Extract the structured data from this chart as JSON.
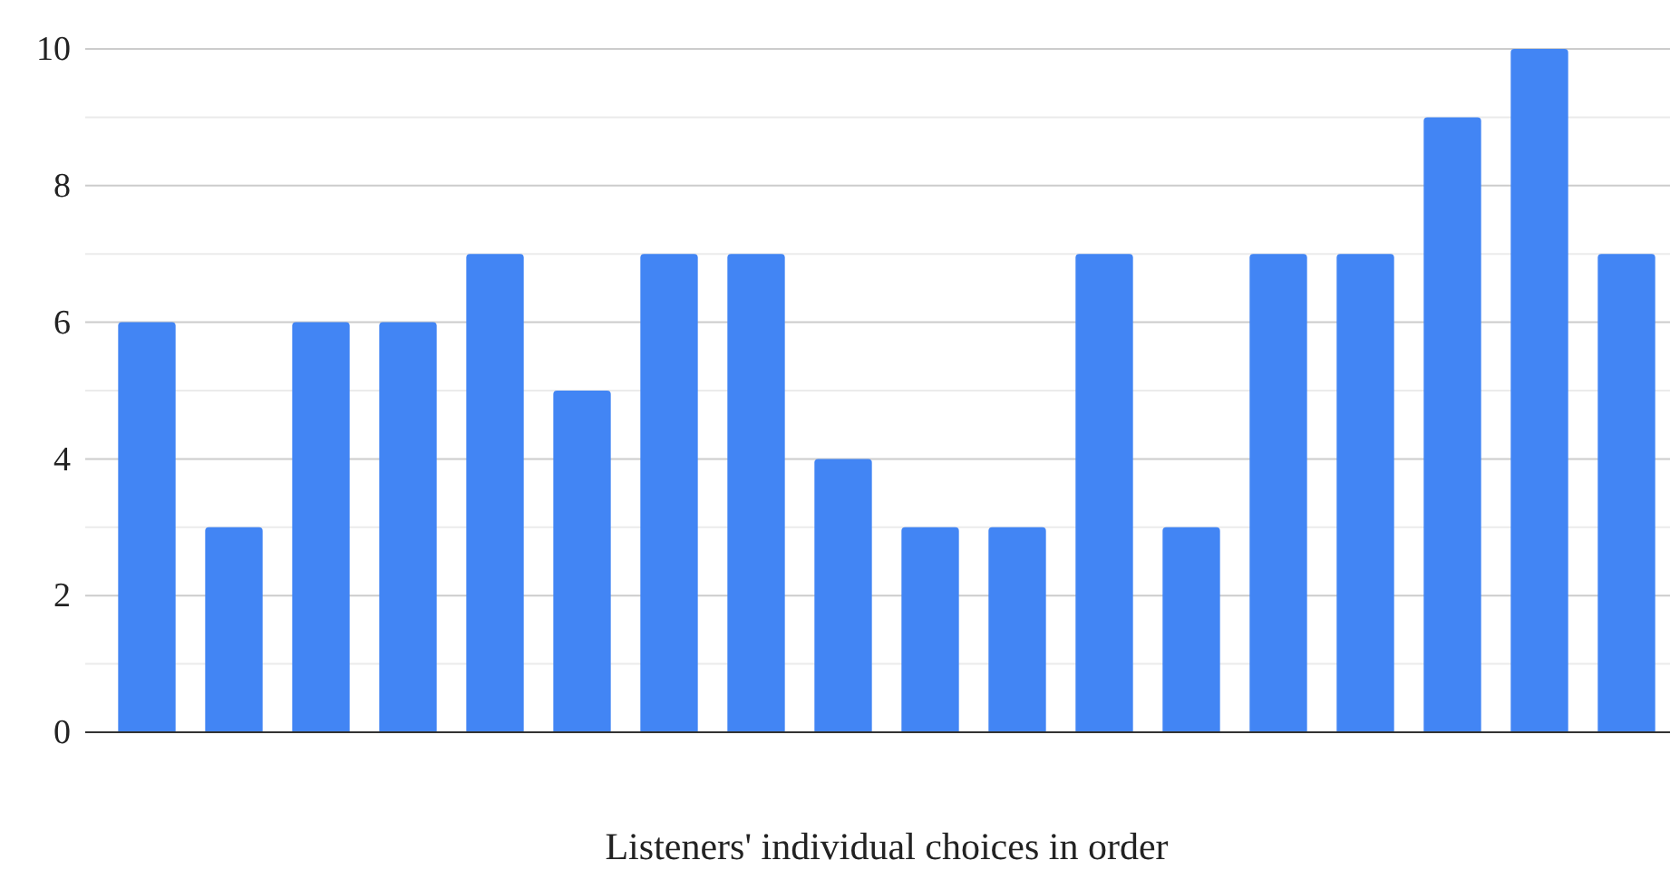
{
  "chart_data": {
    "type": "bar",
    "xlabel": "Listeners' individual choices in order",
    "categories": [
      null,
      null,
      null,
      null,
      null,
      null,
      null,
      null,
      null,
      null,
      null,
      null,
      null,
      null,
      null,
      null,
      null,
      null
    ],
    "values": [
      6,
      3,
      6,
      6,
      7,
      5,
      7,
      7,
      4,
      3,
      3,
      7,
      3,
      7,
      7,
      9,
      10,
      7
    ],
    "color": "#4285f4",
    "ylim": [
      0,
      10
    ],
    "yticks": [
      0,
      {
        "value": 1,
        "label": null
      },
      2,
      {
        "value": 3,
        "label": null
      },
      4,
      {
        "value": 5,
        "label": null
      },
      6,
      {
        "value": 7,
        "label": null
      },
      8,
      {
        "value": 9,
        "label": null
      },
      10
    ],
    "grid": "y"
  }
}
